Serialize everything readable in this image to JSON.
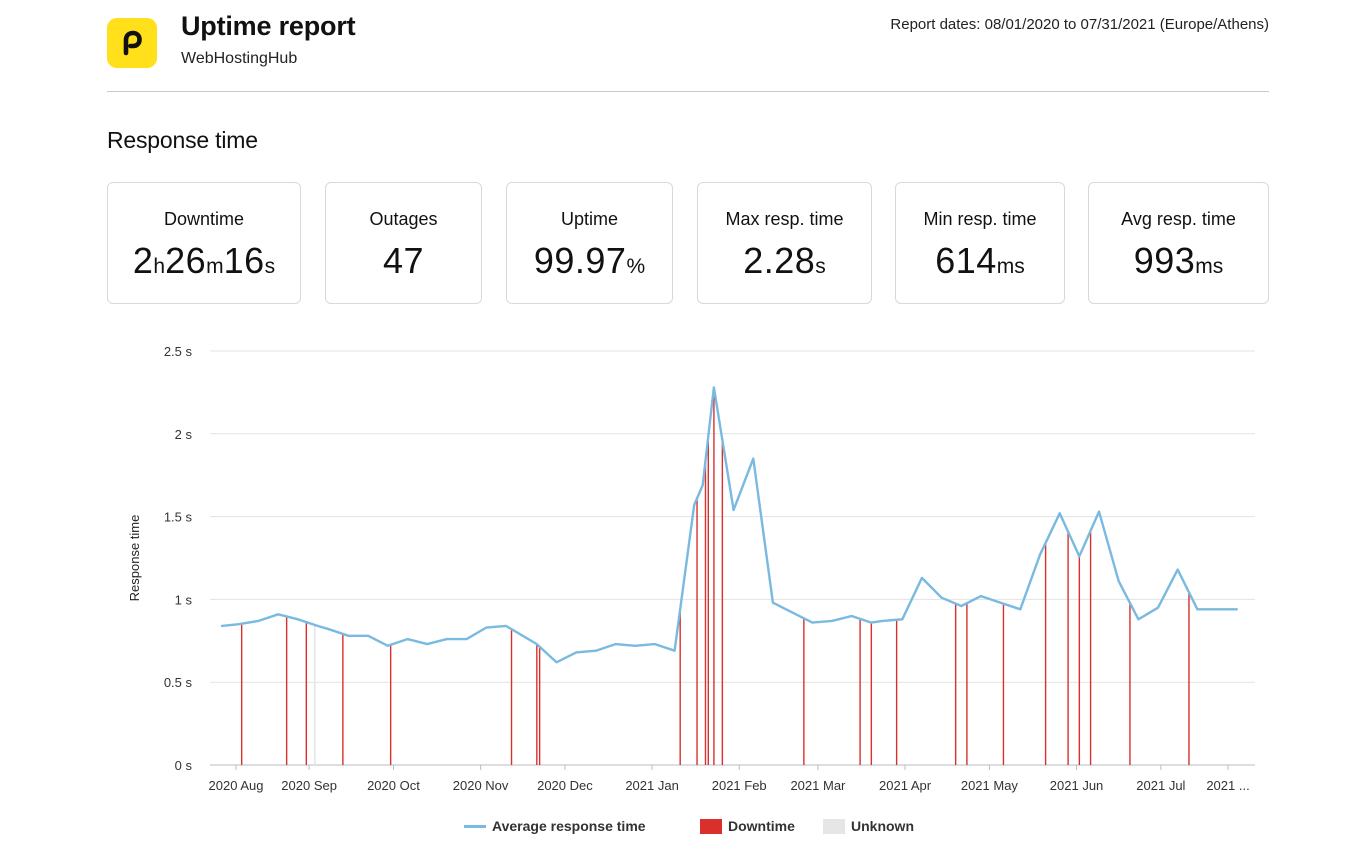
{
  "header": {
    "title": "Uptime report",
    "subtitle": "WebHostingHub",
    "report_dates": "Report dates: 08/01/2020 to 07/31/2021 (Europe/Athens)",
    "logo_color": "#ffe01b"
  },
  "section_title": "Response time",
  "stats": [
    {
      "label": "Downtime",
      "parts": [
        [
          "2",
          ""
        ],
        [
          "h",
          "u"
        ],
        [
          "26",
          ""
        ],
        [
          "m",
          "u"
        ],
        [
          "16",
          ""
        ],
        [
          "s",
          "u"
        ]
      ]
    },
    {
      "label": "Outages",
      "parts": [
        [
          "47",
          ""
        ]
      ]
    },
    {
      "label": "Uptime",
      "parts": [
        [
          "99.97",
          ""
        ],
        [
          "%",
          "u"
        ]
      ]
    },
    {
      "label": "Max resp. time",
      "parts": [
        [
          "2.28",
          ""
        ],
        [
          "s",
          "u"
        ]
      ]
    },
    {
      "label": "Min resp. time",
      "parts": [
        [
          "614",
          ""
        ],
        [
          "ms",
          "u"
        ]
      ]
    },
    {
      "label": "Avg resp. time",
      "parts": [
        [
          "993",
          ""
        ],
        [
          "ms",
          "u"
        ]
      ]
    }
  ],
  "chart_data": {
    "type": "line",
    "ylabel": "Response time",
    "ylim": [
      0,
      2.5
    ],
    "y_ticks": [
      "0 s",
      "0.5 s",
      "1 s",
      "1.5 s",
      "2 s",
      "2.5 s"
    ],
    "x_tick_labels": [
      "2020 Aug",
      "2020 Sep",
      "2020 Oct",
      "2020 Nov",
      "2020 Dec",
      "2021 Jan",
      "2021 Feb",
      "2021 Mar",
      "2021 Apr",
      "2021 May",
      "2021 Jun",
      "2021 Jul",
      "2021 ..."
    ],
    "grid": true,
    "series": [
      {
        "name": "Average response time",
        "color": "#7ab9e0",
        "x": [
          "2020-08-01",
          "2020-08-07",
          "2020-08-14",
          "2020-08-21",
          "2020-08-28",
          "2020-09-04",
          "2020-09-08",
          "2020-09-15",
          "2020-09-22",
          "2020-09-29",
          "2020-10-06",
          "2020-10-13",
          "2020-10-20",
          "2020-10-27",
          "2020-11-03",
          "2020-11-10",
          "2020-11-14",
          "2020-11-21",
          "2020-11-28",
          "2020-12-05",
          "2020-12-12",
          "2020-12-19",
          "2020-12-26",
          "2021-01-02",
          "2021-01-09",
          "2021-01-16",
          "2021-01-19",
          "2021-01-23",
          "2021-01-30",
          "2021-02-06",
          "2021-02-13",
          "2021-02-27",
          "2021-03-06",
          "2021-03-13",
          "2021-03-20",
          "2021-03-24",
          "2021-03-31",
          "2021-04-07",
          "2021-04-14",
          "2021-04-21",
          "2021-04-28",
          "2021-05-05",
          "2021-05-12",
          "2021-05-19",
          "2021-05-26",
          "2021-06-02",
          "2021-06-09",
          "2021-06-16",
          "2021-06-23",
          "2021-06-30",
          "2021-07-07",
          "2021-07-14",
          "2021-07-21",
          "2021-07-28"
        ],
        "values": [
          0.84,
          0.85,
          0.87,
          0.91,
          0.88,
          0.84,
          0.82,
          0.78,
          0.78,
          0.72,
          0.76,
          0.73,
          0.76,
          0.76,
          0.83,
          0.84,
          0.8,
          0.73,
          0.62,
          0.68,
          0.69,
          0.73,
          0.72,
          0.73,
          0.69,
          1.57,
          1.69,
          2.28,
          1.54,
          1.85,
          0.98,
          0.86,
          0.87,
          0.9,
          0.86,
          0.87,
          0.88,
          1.13,
          1.01,
          0.96,
          1.02,
          0.98,
          0.94,
          1.27,
          1.52,
          1.26,
          1.53,
          1.11,
          0.88,
          0.95,
          1.18,
          0.94,
          0.94,
          0.94
        ]
      }
    ],
    "downtime": {
      "name": "Downtime",
      "color": "#d9302c",
      "dates": [
        "2020-08-08",
        "2020-08-24",
        "2020-08-31",
        "2020-09-13",
        "2020-09-30",
        "2020-11-12",
        "2020-11-21",
        "2020-11-22",
        "2021-01-11",
        "2021-01-17",
        "2021-01-20",
        "2021-01-21",
        "2021-01-23",
        "2021-01-26",
        "2021-02-24",
        "2021-03-16",
        "2021-03-20",
        "2021-03-29",
        "2021-04-19",
        "2021-04-23",
        "2021-05-06",
        "2021-05-21",
        "2021-05-29",
        "2021-06-02",
        "2021-06-06",
        "2021-06-20",
        "2021-07-11"
      ]
    },
    "unknown": {
      "name": "Unknown",
      "color": "#e6e6e6",
      "dates": [
        "2020-09-03"
      ]
    }
  },
  "legend": {
    "line_label": "Average response time",
    "downtime_label": "Downtime",
    "unknown_label": "Unknown"
  }
}
